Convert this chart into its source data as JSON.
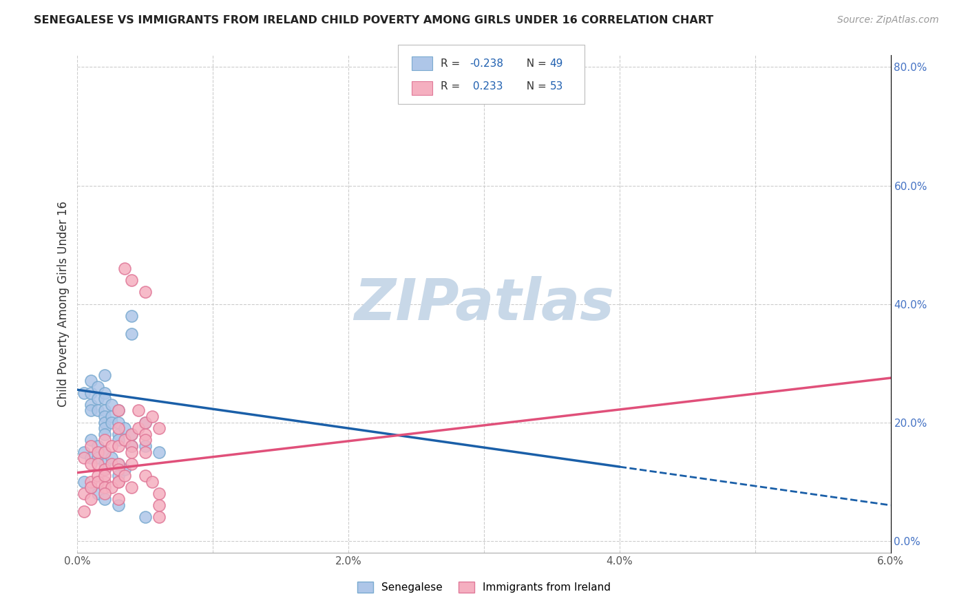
{
  "title": "SENEGALESE VS IMMIGRANTS FROM IRELAND CHILD POVERTY AMONG GIRLS UNDER 16 CORRELATION CHART",
  "source": "Source: ZipAtlas.com",
  "ylabel": "Child Poverty Among Girls Under 16",
  "right_ylabel_color": "#4472c4",
  "xlim": [
    0.0,
    0.06
  ],
  "ylim": [
    -0.02,
    0.82
  ],
  "xticks": [
    0.0,
    0.01,
    0.02,
    0.03,
    0.04,
    0.05,
    0.06
  ],
  "xticklabels": [
    "0.0%",
    "",
    "2.0%",
    "",
    "4.0%",
    "",
    "6.0%"
  ],
  "yticks_right": [
    0.0,
    0.2,
    0.4,
    0.6,
    0.8
  ],
  "yticks_right_labels": [
    "0.0%",
    "20.0%",
    "40.0%",
    "60.0%",
    "80.0%"
  ],
  "grid_color": "#cccccc",
  "background_color": "#ffffff",
  "watermark_text": "ZIPatlas",
  "watermark_color": "#c8d8e8",
  "senegalese_color": "#aec6e8",
  "senegalese_edge_color": "#7aaad0",
  "ireland_color": "#f5afc0",
  "ireland_edge_color": "#e07898",
  "blue_line_color": "#1a5fa8",
  "pink_line_color": "#e0507a",
  "legend_label1": "Senegalese",
  "legend_label2": "Immigrants from Ireland",
  "sen_line_x0": 0.0,
  "sen_line_y0": 0.255,
  "sen_line_x1": 0.04,
  "sen_line_y1": 0.125,
  "sen_line_xdash": 0.06,
  "sen_line_ydash": 0.06,
  "ire_line_x0": 0.0,
  "ire_line_y0": 0.115,
  "ire_line_x1": 0.06,
  "ire_line_y1": 0.275,
  "senegalese_x": [
    0.0005,
    0.001,
    0.001,
    0.001,
    0.001,
    0.0015,
    0.0015,
    0.0015,
    0.002,
    0.002,
    0.002,
    0.002,
    0.002,
    0.002,
    0.002,
    0.002,
    0.0025,
    0.0025,
    0.0025,
    0.003,
    0.003,
    0.003,
    0.003,
    0.0035,
    0.004,
    0.004,
    0.004,
    0.005,
    0.005,
    0.006,
    0.0005,
    0.001,
    0.001,
    0.0015,
    0.0015,
    0.002,
    0.002,
    0.002,
    0.0025,
    0.003,
    0.003,
    0.0035,
    0.004,
    0.005,
    0.0005,
    0.001,
    0.0015,
    0.002,
    0.003
  ],
  "senegalese_y": [
    0.25,
    0.27,
    0.25,
    0.23,
    0.22,
    0.26,
    0.24,
    0.22,
    0.28,
    0.25,
    0.24,
    0.22,
    0.21,
    0.2,
    0.19,
    0.18,
    0.23,
    0.21,
    0.2,
    0.22,
    0.2,
    0.18,
    0.17,
    0.19,
    0.35,
    0.18,
    0.16,
    0.2,
    0.16,
    0.15,
    0.15,
    0.17,
    0.14,
    0.16,
    0.14,
    0.15,
    0.13,
    0.12,
    0.14,
    0.13,
    0.11,
    0.12,
    0.38,
    0.04,
    0.1,
    0.09,
    0.08,
    0.07,
    0.06
  ],
  "ireland_x": [
    0.0005,
    0.001,
    0.001,
    0.001,
    0.0015,
    0.0015,
    0.0015,
    0.002,
    0.002,
    0.002,
    0.002,
    0.0025,
    0.0025,
    0.003,
    0.003,
    0.003,
    0.003,
    0.003,
    0.0035,
    0.004,
    0.004,
    0.004,
    0.0045,
    0.005,
    0.005,
    0.0005,
    0.001,
    0.0015,
    0.002,
    0.002,
    0.0025,
    0.003,
    0.003,
    0.0035,
    0.004,
    0.0045,
    0.005,
    0.005,
    0.0055,
    0.006,
    0.0005,
    0.001,
    0.002,
    0.003,
    0.004,
    0.005,
    0.0055,
    0.006,
    0.006,
    0.006,
    0.0035,
    0.004,
    0.005
  ],
  "ireland_y": [
    0.14,
    0.16,
    0.13,
    0.1,
    0.15,
    0.13,
    0.11,
    0.17,
    0.15,
    0.12,
    0.1,
    0.16,
    0.13,
    0.22,
    0.19,
    0.16,
    0.13,
    0.1,
    0.17,
    0.18,
    0.16,
    0.13,
    0.19,
    0.18,
    0.15,
    0.08,
    0.09,
    0.1,
    0.11,
    0.09,
    0.09,
    0.12,
    0.1,
    0.11,
    0.15,
    0.22,
    0.2,
    0.17,
    0.21,
    0.19,
    0.05,
    0.07,
    0.08,
    0.07,
    0.09,
    0.11,
    0.1,
    0.08,
    0.06,
    0.04,
    0.46,
    0.44,
    0.42
  ]
}
